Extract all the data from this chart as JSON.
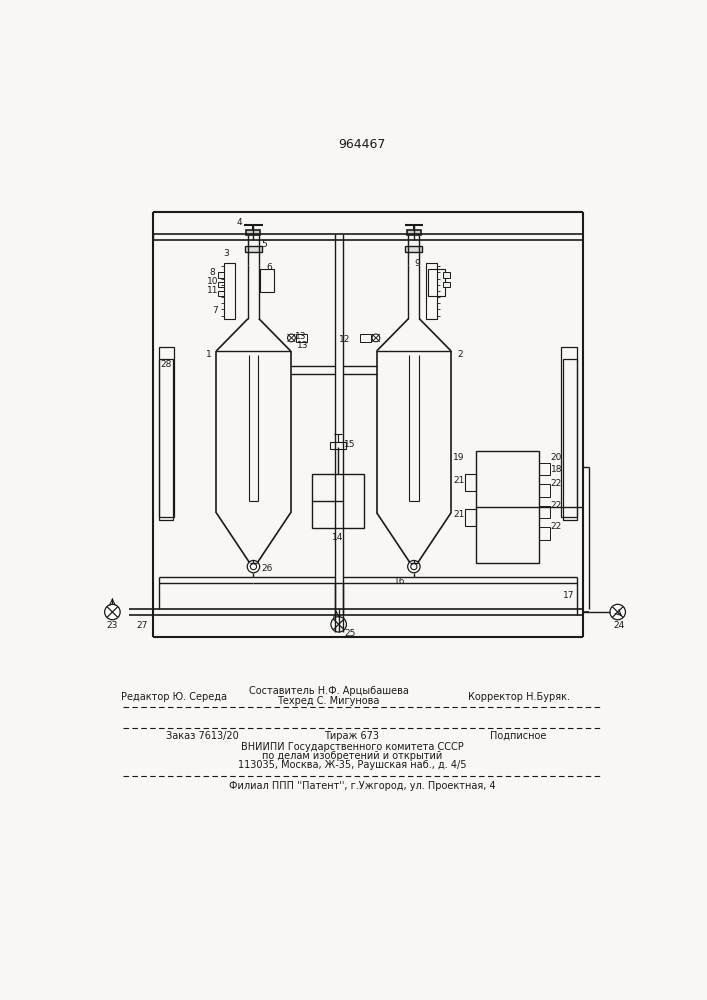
{
  "title": "964467",
  "bg_color": "#f8f7f3",
  "line_color": "#1a1a1a",
  "text_color": "#1a1a1a",
  "footer_editor": "Редактор Ю. Середа",
  "footer_composer": "Составитель Н.Ф. Арцыбашева",
  "footer_corrector": "Корректор Н.Буряк.",
  "footer_techred": "Техред С. Мигунова",
  "footer_order": "Заказ 7613/20",
  "footer_tirazh": "Тираж 673",
  "footer_podpisnoe": "Подписное",
  "footer_vniip1": "ВНИИПИ Государственного комитета СССР",
  "footer_vniip2": "по делам изобретений и открытий",
  "footer_vniip3": "113035, Москва, Ж-35, Раушская наб., д. 4/5",
  "footer_filial": "Филиал ППП ''Патент'', г.Ужгород, ул. Проектная, 4"
}
